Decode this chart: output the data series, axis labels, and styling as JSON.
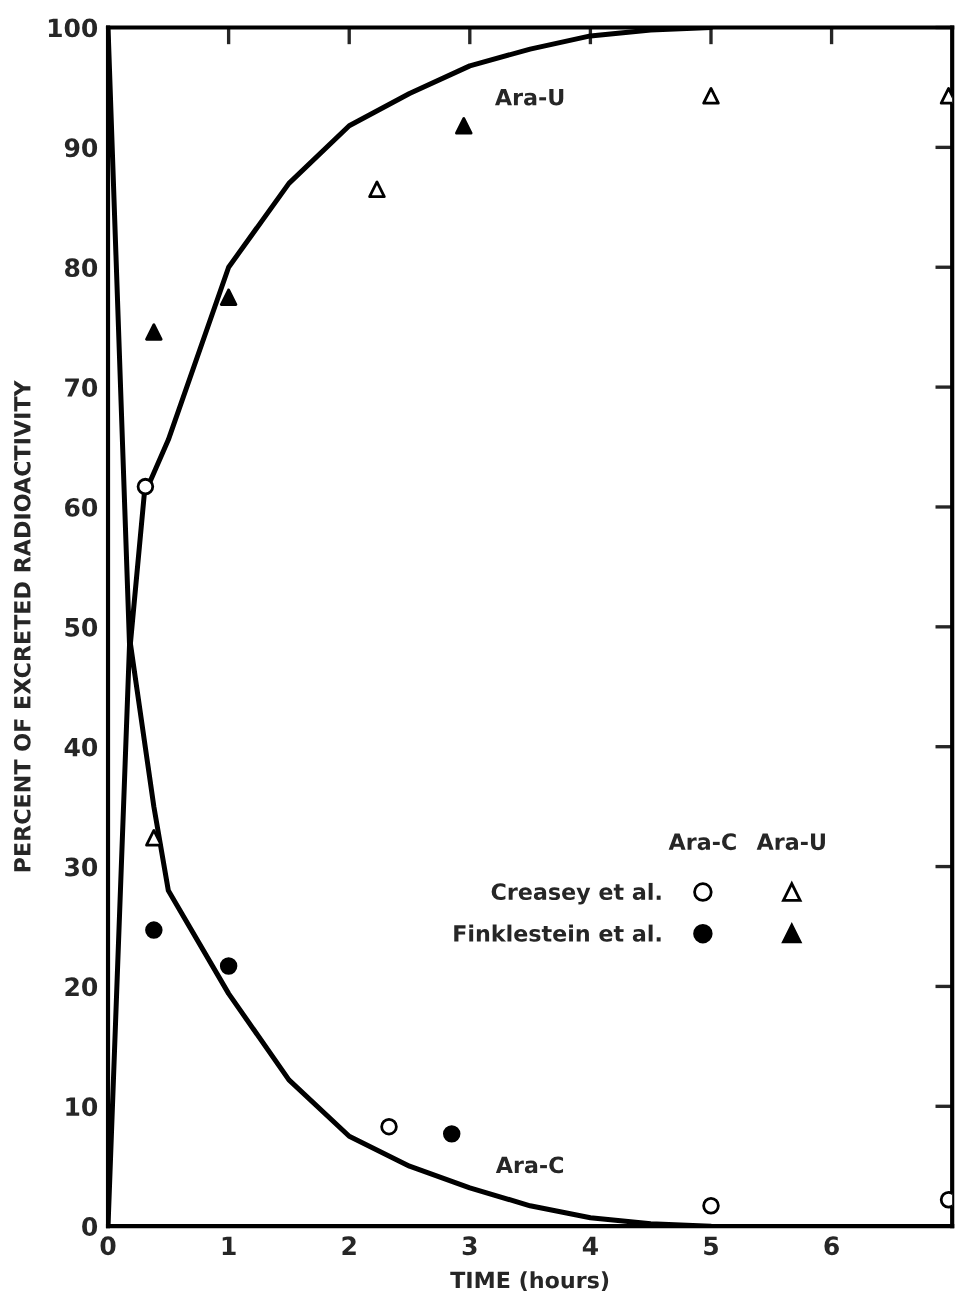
{
  "chart_data": {
    "type": "scatter",
    "xlabel": "TIME (hours)",
    "ylabel": "PERCENT OF EXCRETED RADIOACTIVITY",
    "xlim": [
      0,
      7
    ],
    "ylim": [
      0,
      100
    ],
    "xticks": [
      0,
      1,
      2,
      3,
      4,
      5,
      6
    ],
    "yticks": [
      0,
      10,
      20,
      30,
      40,
      50,
      60,
      70,
      80,
      90,
      100
    ],
    "grid": false,
    "legend": "right",
    "annotations": [
      "Ara-C",
      "Ara-U"
    ],
    "series": [
      {
        "name": "Ara-U",
        "type": "line",
        "color": "#000000",
        "x": [
          0,
          0.18,
          0.3,
          0.5,
          1.0,
          1.5,
          2.0,
          2.5,
          3.0,
          3.5,
          4.0,
          4.5,
          5.0
        ],
        "values": [
          100,
          48,
          61,
          65.6,
          80,
          87,
          91.8,
          94.5,
          96.8,
          98.2,
          99.3,
          99.8,
          100
        ]
      },
      {
        "name": "Ara-C",
        "type": "line",
        "color": "#000000",
        "x": [
          0,
          0.18,
          0.38,
          0.5,
          1.0,
          1.5,
          2.0,
          2.5,
          3.0,
          3.5,
          4.0,
          4.5,
          5.0
        ],
        "values": [
          0,
          49,
          35,
          28,
          19.4,
          12.2,
          7.5,
          5.0,
          3.2,
          1.7,
          0.7,
          0.2,
          0
        ]
      },
      {
        "name": "Creasey et al.",
        "marker": "circle",
        "color": "#ffffff",
        "x": [
          0.31,
          2.33,
          5.0,
          6.97
        ],
        "values": [
          61.7,
          8.3,
          1.7,
          2.2
        ]
      },
      {
        "name": "Finklestein et al.",
        "marker": "circle",
        "color": "#000000",
        "x": [
          0.38,
          1.0,
          2.85
        ],
        "values": [
          24.7,
          21.7,
          7.7
        ]
      },
      {
        "marker": "triangle",
        "color": "#ffffff",
        "x": [
          0.38,
          2.23,
          5.0,
          6.97
        ],
        "values": [
          32.4,
          86.5,
          94.3,
          94.3
        ]
      },
      {
        "marker": "triangle",
        "color": "#000000",
        "x": [
          0.38,
          1.0,
          2.95
        ],
        "values": [
          74.6,
          77.5,
          91.8
        ]
      }
    ]
  }
}
